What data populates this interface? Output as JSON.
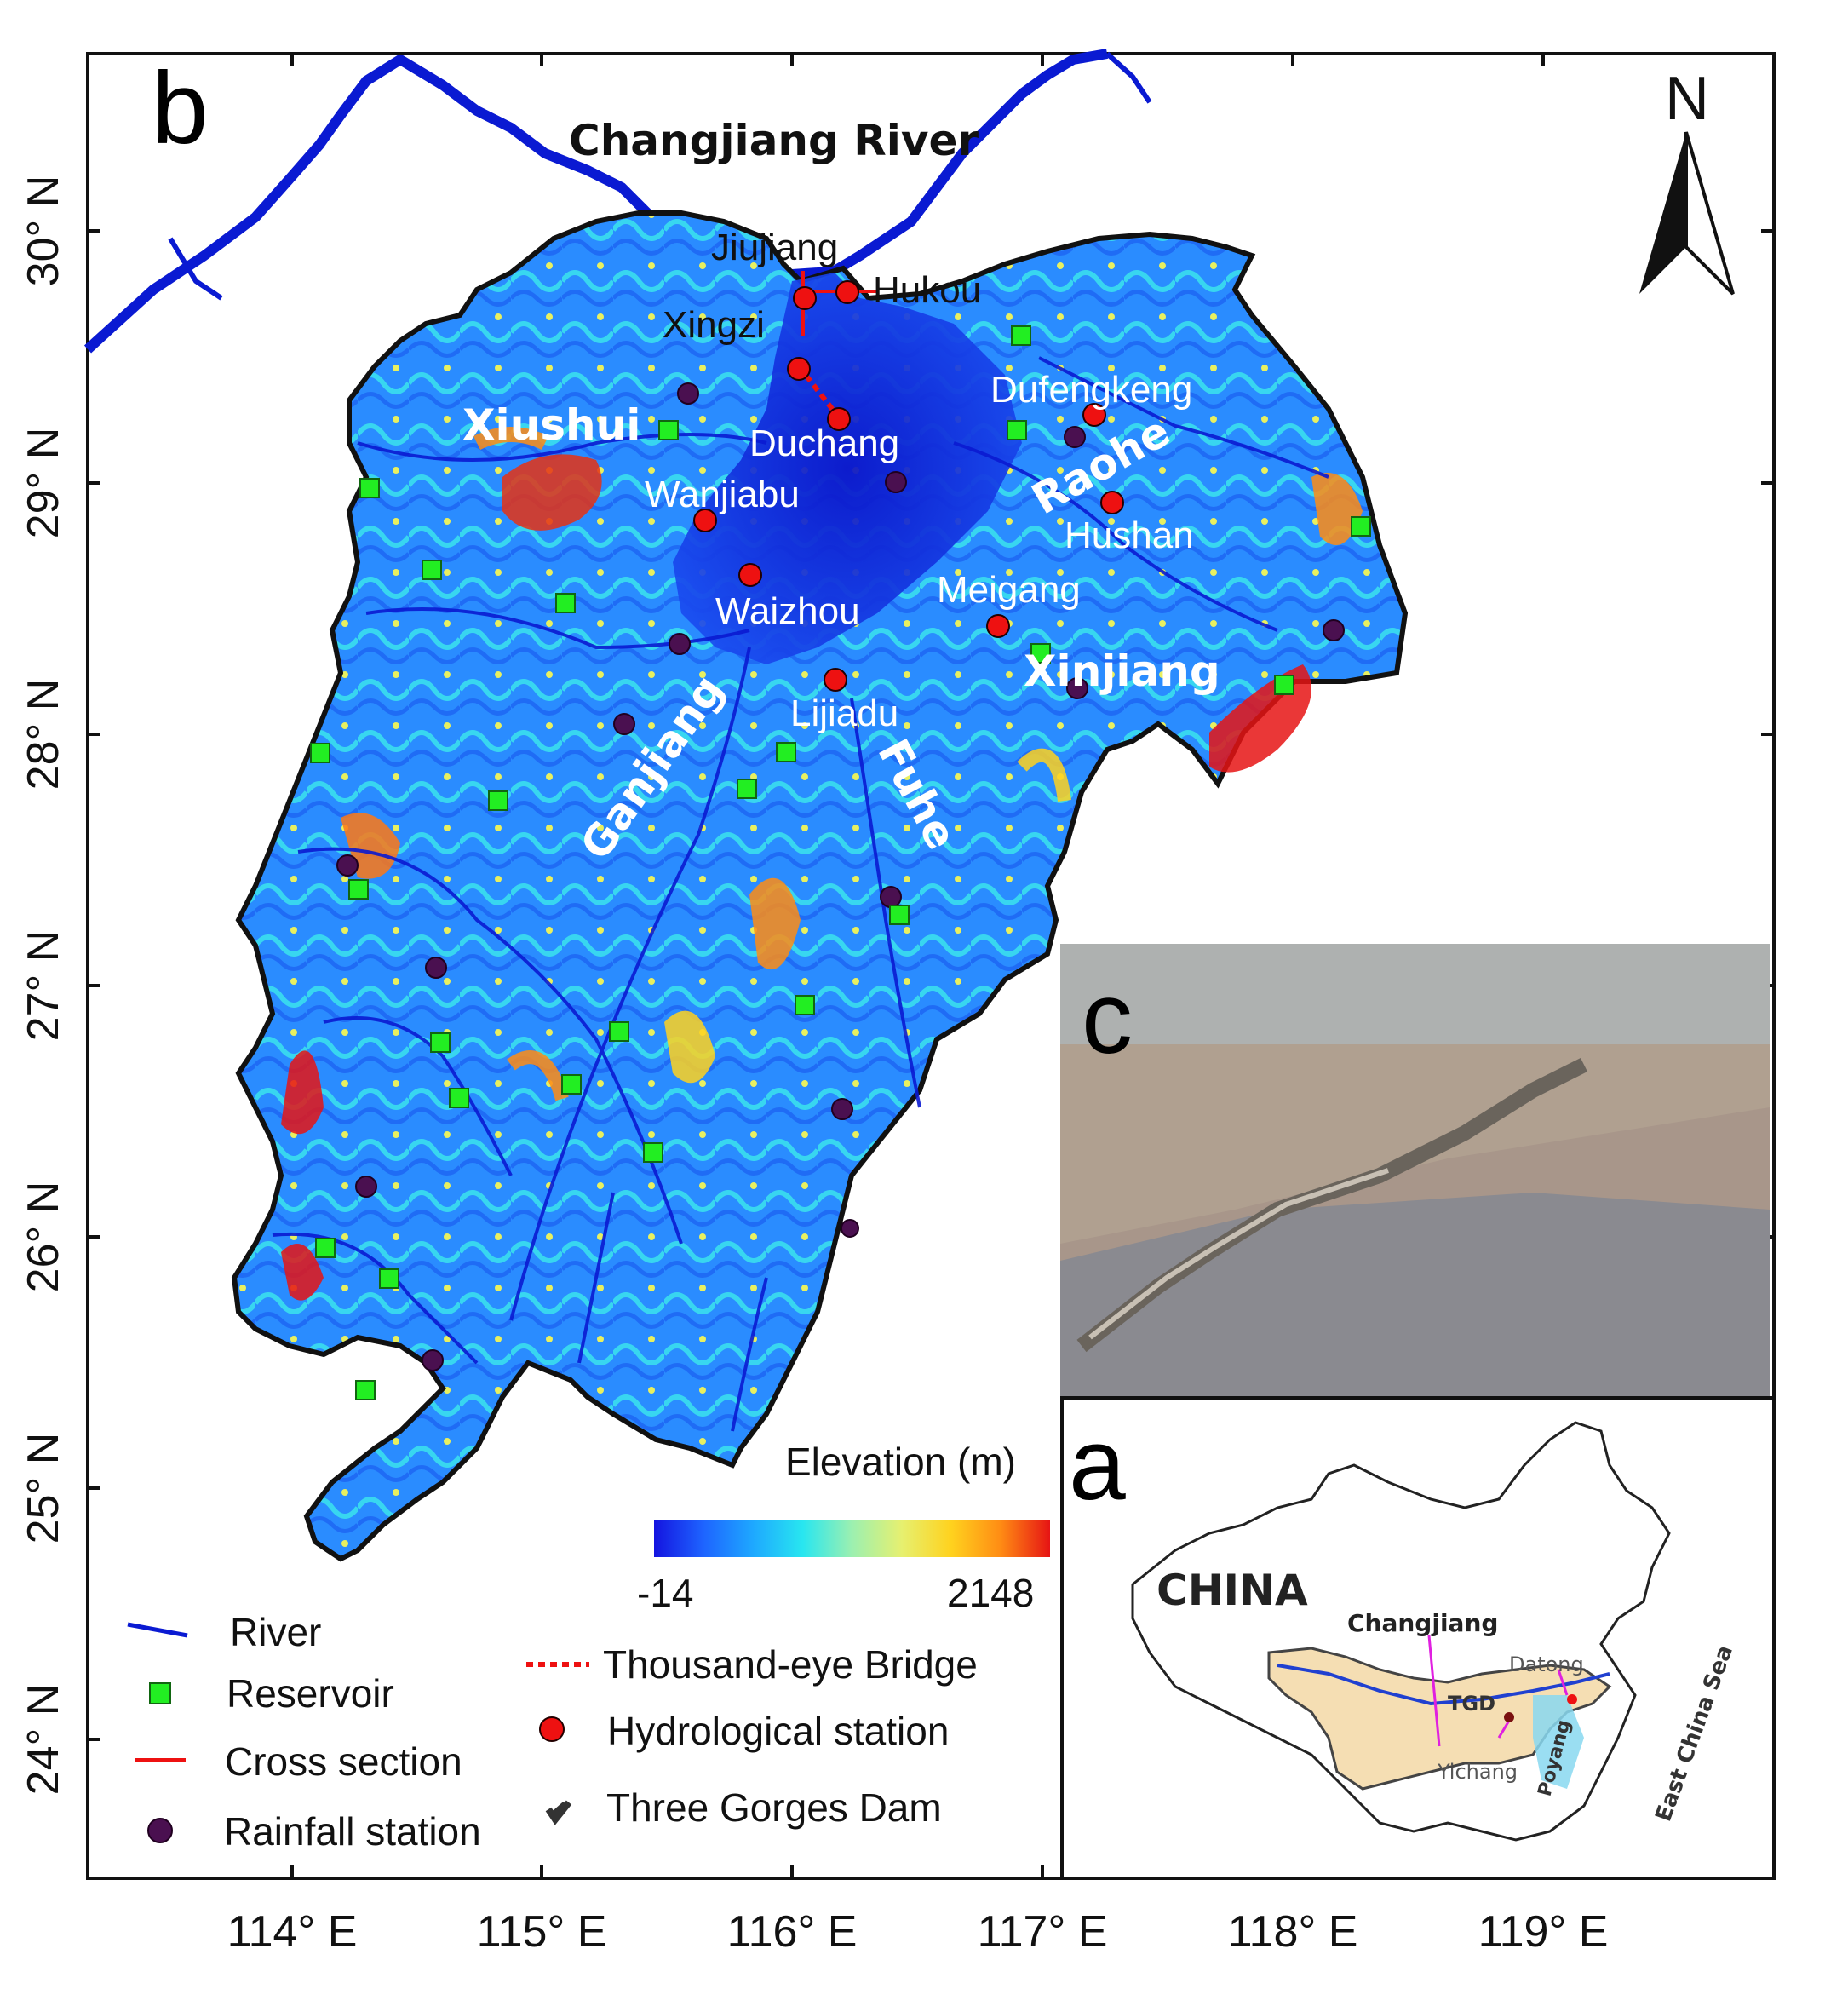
{
  "panel_b": {
    "letter": "b",
    "river_title": "Changjiang River",
    "north_label": "N",
    "lat_ticks": [
      "30° N",
      "29° N",
      "28° N",
      "27° N",
      "26° N",
      "25° N",
      "24° N"
    ],
    "lon_ticks": [
      "114° E",
      "115° E",
      "116° E",
      "117° E",
      "118° E",
      "119° E"
    ],
    "stations": {
      "jiujiang": "Jiujiang",
      "hukou": "Hukou",
      "xingzi": "Xingzi",
      "duchang": "Duchang",
      "dufengkeng": "Dufengkeng",
      "wanjiabu": "Wanjiabu",
      "hushan": "Hushan",
      "waizhou": "Waizhou",
      "meigang": "Meigang",
      "lijiadu": "Lijiadu"
    },
    "basins": {
      "xiushui": "Xiushui",
      "raohe": "Raohe",
      "xinjiang": "Xinjiang",
      "ganjiang": "Ganjiang",
      "fuhe": "Fuhe"
    },
    "colorbar": {
      "title": "Elevation (m)",
      "min": "-14",
      "max": "2148",
      "colors": [
        "#1414e0",
        "#1e64ff",
        "#1ea8ff",
        "#28e6f0",
        "#9cf0b0",
        "#e6f070",
        "#ffd21e",
        "#ff8c14",
        "#e61414"
      ]
    },
    "legend": {
      "river": "River",
      "reservoir": "Reservoir",
      "cross_section": "Cross section",
      "rainfall_station": "Rainfall  station",
      "bridge": "Thousand-eye Bridge",
      "hydrological_station": "Hydrological station",
      "dam": "Three Gorges Dam"
    },
    "colors": {
      "river": "#0a1ad2",
      "reservoir": "#22ee22",
      "hydro_station": "#ee1111",
      "rain_station": "#4a1050",
      "cross_section": "#ee1111"
    }
  },
  "panel_c": {
    "letter": "c"
  },
  "panel_a": {
    "letter": "a",
    "country": "CHINA",
    "basin": "Changjiang",
    "tgd": "TGD",
    "datong": "Datong",
    "yichang": "Yichang",
    "poyang": "Poyang",
    "sea": "East China Sea"
  }
}
